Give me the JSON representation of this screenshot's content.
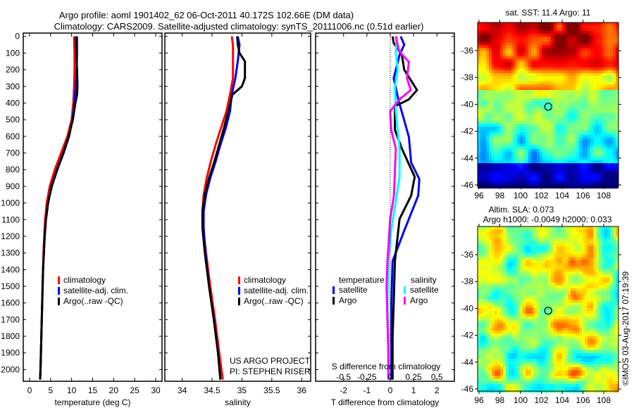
{
  "header": {
    "line1": "Argo profile: aoml 1901402_62 06-Oct-2011 40.172S 102.66E (DM data)",
    "line2": "Climatology: CARS2009. Satellite-adjusted climatology: synTS_20111006.nc (0.51d earlier)"
  },
  "depth_ticks": [
    "0",
    "100",
    "200",
    "300",
    "400",
    "500",
    "600",
    "700",
    "800",
    "900",
    "1000",
    "1100",
    "1200",
    "1300",
    "1400",
    "1500",
    "1600",
    "1700",
    "1800",
    "1900",
    "2000"
  ],
  "colors": {
    "climatology": "#ff0000",
    "satellite": "#0000ff",
    "argo": "#000000",
    "sal_satellite": "#00ffff",
    "sal_argo": "#ff00ff"
  },
  "chart_data": [
    {
      "type": "line",
      "xlabel": "temperature (deg C)",
      "ylabel": "depth",
      "xlim": [
        -1.5,
        31.5
      ],
      "ylim": [
        2070,
        -20
      ],
      "xticks": [
        "0",
        "5",
        "10",
        "15",
        "20",
        "25",
        "30"
      ],
      "legend": [
        "climatology",
        "satellite-adj. clim.",
        "Argo(..raw -QC)"
      ],
      "series": [
        {
          "name": "climatology",
          "color": "#ff0000",
          "depth": [
            0,
            100,
            200,
            300,
            400,
            500,
            600,
            700,
            800,
            900,
            1000,
            1100,
            1200,
            1300,
            1400,
            1600,
            1800,
            2000,
            2060
          ],
          "values": [
            10.6,
            10.7,
            10.7,
            10.6,
            10.4,
            10.0,
            9.0,
            7.5,
            6.0,
            4.8,
            4.1,
            3.7,
            3.5,
            3.3,
            3.2,
            3.0,
            2.8,
            2.6,
            2.5
          ]
        },
        {
          "name": "satellite",
          "color": "#0000ff",
          "depth": [
            0,
            100,
            200,
            300,
            400,
            500,
            600,
            700,
            800,
            900,
            1000,
            1100,
            1200,
            1300,
            1400,
            1600,
            1800,
            2000,
            2060
          ],
          "values": [
            11.3,
            11.3,
            11.2,
            11.0,
            10.7,
            10.2,
            9.4,
            8.1,
            6.6,
            5.3,
            4.4,
            3.9,
            3.6,
            3.4,
            3.2,
            3.0,
            2.8,
            2.6,
            2.5
          ]
        },
        {
          "name": "argo",
          "color": "#000000",
          "depth": [
            0,
            100,
            200,
            300,
            350,
            400,
            500,
            600,
            700,
            800,
            900,
            1000,
            1100,
            1200,
            1300,
            1400,
            1600,
            1800,
            2000,
            2060
          ],
          "values": [
            11.0,
            11.1,
            11.3,
            11.4,
            11.3,
            10.9,
            10.3,
            9.3,
            8.0,
            6.5,
            5.2,
            4.4,
            3.9,
            3.6,
            3.4,
            3.2,
            3.0,
            2.8,
            2.6,
            2.5
          ]
        }
      ]
    },
    {
      "type": "line",
      "xlabel": "salinity",
      "ylabel": "depth",
      "xlim": [
        33.71,
        36.15
      ],
      "ylim": [
        2070,
        -20
      ],
      "xticks": [
        "34",
        "34.5",
        "35",
        "35.5",
        "36"
      ],
      "legend": [
        "climatology",
        "satellite-adj. clim.",
        "Argo(..raw -QC)"
      ],
      "series": [
        {
          "name": "climatology",
          "color": "#ff0000",
          "depth": [
            0,
            50,
            150,
            250,
            350,
            450,
            550,
            650,
            750,
            850,
            950,
            1050,
            1150,
            1300,
            1500,
            1700,
            1900,
            2060
          ],
          "values": [
            34.83,
            34.85,
            34.85,
            34.85,
            34.8,
            34.74,
            34.65,
            34.56,
            34.48,
            34.41,
            34.36,
            34.34,
            34.35,
            34.4,
            34.47,
            34.55,
            34.62,
            34.68
          ]
        },
        {
          "name": "satellite",
          "color": "#0000ff",
          "depth": [
            0,
            50,
            150,
            250,
            350,
            450,
            550,
            650,
            750,
            850,
            950,
            1050,
            1150,
            1300,
            1500,
            1700,
            1900,
            2060
          ],
          "values": [
            34.93,
            34.96,
            34.93,
            34.89,
            34.83,
            34.8,
            34.73,
            34.64,
            34.56,
            34.47,
            34.4,
            34.36,
            34.36,
            34.39,
            34.45,
            34.53,
            34.6,
            34.64
          ]
        },
        {
          "name": "argo",
          "color": "#000000",
          "depth": [
            0,
            50,
            100,
            150,
            250,
            300,
            350,
            450,
            550,
            650,
            750,
            850,
            950,
            1050,
            1150,
            1300,
            1500,
            1700,
            1900,
            2060
          ],
          "values": [
            34.92,
            34.93,
            34.96,
            35.05,
            35.05,
            35.0,
            34.84,
            34.77,
            34.7,
            34.62,
            34.54,
            34.45,
            34.38,
            34.34,
            34.34,
            34.38,
            34.45,
            34.53,
            34.6,
            34.64
          ]
        }
      ]
    },
    {
      "type": "line",
      "xlabel": "T difference from climatology",
      "xlabel2": "S difference from climatology",
      "ylabel": "depth",
      "xlim": [
        -3.2,
        2.75
      ],
      "ylim": [
        2070,
        -20
      ],
      "xticks": [
        "-2",
        "-1",
        "0",
        "1",
        "2"
      ],
      "xticks2": [
        "-0.5",
        "-0.25",
        "0",
        "0.25",
        "0.5"
      ],
      "legend_titles": [
        "temperature",
        "salinity"
      ],
      "legend": [
        "satellite",
        "Argo",
        "satellite",
        "Argo"
      ],
      "series": [
        {
          "name": "T satellite",
          "axis": "T",
          "color": "#0000ff",
          "depth": [
            0,
            50,
            111,
            252,
            380,
            603,
            758,
            857,
            955,
            1166,
            1349,
            1600,
            1800,
            2060
          ],
          "values": [
            0.45,
            0.6,
            0.4,
            0.15,
            0.35,
            0.8,
            0.9,
            1.25,
            1.2,
            0.6,
            0.1,
            0.05,
            0.05,
            0.05
          ]
        },
        {
          "name": "T Argo",
          "axis": "T",
          "color": "#000000",
          "depth": [
            0,
            40,
            111,
            200,
            322,
            378,
            420,
            561,
            674,
            843,
            955,
            1096,
            1349,
            1600,
            1800,
            2060
          ],
          "values": [
            0.1,
            0.15,
            0.5,
            0.6,
            1.15,
            0.8,
            0.2,
            0.2,
            0.5,
            1.05,
            0.9,
            0.4,
            0.2,
            0.15,
            0.1,
            0.1
          ]
        },
        {
          "name": "S satellite",
          "axis": "S",
          "color": "#00ffff",
          "depth": [
            0,
            100,
            200,
            300,
            449,
            674,
            843,
            955,
            1166,
            1349,
            1600,
            1800,
            2060
          ],
          "values": [
            0.07,
            0.06,
            0.08,
            0.05,
            0.06,
            0.1,
            0.1,
            0.07,
            0.01,
            -0.02,
            -0.03,
            -0.02,
            -0.02
          ]
        },
        {
          "name": "S Argo",
          "axis": "S",
          "color": "#ff00ff",
          "depth": [
            0,
            80,
            111,
            153,
            252,
            322,
            378,
            449,
            561,
            674,
            955,
            1096,
            1349,
            1500,
            1700,
            1900,
            2060
          ],
          "values": [
            0.06,
            0.09,
            0.13,
            0.2,
            0.18,
            0.22,
            0.1,
            0.0,
            0.01,
            0.06,
            0.04,
            0.0,
            -0.03,
            -0.04,
            -0.03,
            -0.02,
            -0.02
          ]
        }
      ]
    }
  ],
  "annotation": {
    "line1": "US ARGO PROJECT",
    "line2": "PI: STEPHEN RISER"
  },
  "maps": {
    "sst": {
      "title": "sat. SST: 11.4 Argo: 11"
    },
    "sla": {
      "title1": "Altim. SLA: 0.073",
      "title2": "Argo h1000: -0.0049 h2000: 0.033"
    },
    "lon_ticks": [
      "96",
      "98",
      "100",
      "102",
      "104",
      "106",
      "108"
    ],
    "lat_ticks": [
      "-36",
      "-38",
      "-40",
      "-42",
      "-44",
      "-46"
    ],
    "profile_location": {
      "lon": 102.66,
      "lat": -40.172
    }
  },
  "copyright": "©IMOS 03-Aug-2017 07:19:39"
}
